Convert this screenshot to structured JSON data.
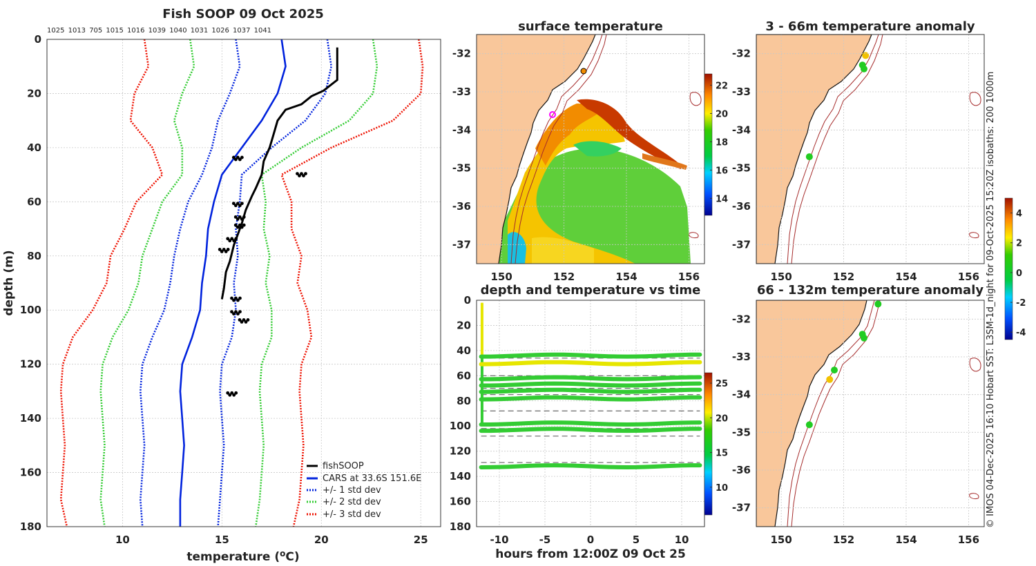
{
  "figure": {
    "copyright": "© IMOS 04-Dec-2025 16:10 Hobart SST: L3SM-1d_night for 09-Oct-2025 15:20Z isobaths: 200  1000m"
  },
  "colors": {
    "land": "#f9c79b",
    "coast": "#111111",
    "isobath": "#a52a2a",
    "fishsoop": "#000000",
    "cars": "#0022dd",
    "std1": "#0022dd",
    "std2": "#33cc33",
    "std3": "#ee1100",
    "dashed": "#666666"
  },
  "chart_data": [
    {
      "id": "profile",
      "type": "line",
      "title": "Fish SOOP 09 Oct 2025",
      "xlabel": "temperature (°C)",
      "ylabel": "depth (m)",
      "xlim": [
        6.2,
        26
      ],
      "ylim": [
        0,
        180
      ],
      "y_reversed": true,
      "xticks": [
        10,
        15,
        20,
        25
      ],
      "yticks": [
        0,
        20,
        40,
        60,
        80,
        100,
        120,
        140,
        160,
        180
      ],
      "top_annotations": [
        "1025",
        "1013",
        "705",
        "1015",
        "1016",
        "1039",
        "1040",
        "1031",
        "1026",
        "1037",
        "1041"
      ],
      "legend_position": "bottom-right",
      "series": [
        {
          "name": "fishSOOP",
          "style": "solid",
          "color": "#000000",
          "points": [
            [
              20.8,
              3
            ],
            [
              20.8,
              15
            ],
            [
              20.1,
              19
            ],
            [
              19.5,
              21
            ],
            [
              19.0,
              24
            ],
            [
              18.2,
              26
            ],
            [
              17.8,
              30
            ],
            [
              17.6,
              35
            ],
            [
              17.4,
              40
            ],
            [
              17.1,
              45
            ],
            [
              17.0,
              50
            ],
            [
              16.7,
              55
            ],
            [
              16.5,
              58
            ],
            [
              16.2,
              63
            ],
            [
              16.0,
              68
            ],
            [
              15.8,
              72
            ],
            [
              15.6,
              76
            ],
            [
              15.4,
              82
            ],
            [
              15.2,
              86
            ],
            [
              15.1,
              92
            ],
            [
              15.0,
              96
            ]
          ]
        },
        {
          "name": "CARS at 33.6S 151.6E",
          "style": "solid",
          "color": "#0022dd",
          "points": [
            [
              18.0,
              0
            ],
            [
              18.2,
              10
            ],
            [
              17.8,
              20
            ],
            [
              17.0,
              30
            ],
            [
              16.0,
              40
            ],
            [
              15.0,
              50
            ],
            [
              14.6,
              60
            ],
            [
              14.3,
              70
            ],
            [
              14.2,
              80
            ],
            [
              14.0,
              90
            ],
            [
              13.9,
              100
            ],
            [
              13.5,
              110
            ],
            [
              13.0,
              120
            ],
            [
              12.9,
              130
            ],
            [
              13.0,
              140
            ],
            [
              13.1,
              150
            ],
            [
              13.0,
              160
            ],
            [
              12.9,
              170
            ],
            [
              12.9,
              180
            ]
          ]
        },
        {
          "name": "+/- 1 std dev",
          "style": "dotted",
          "color": "#0022dd",
          "points": [
            [
              15.7,
              0
            ],
            [
              15.9,
              10
            ],
            [
              15.4,
              20
            ],
            [
              14.8,
              30
            ],
            [
              14.5,
              40
            ],
            [
              14.0,
              50
            ],
            [
              13.3,
              60
            ],
            [
              12.9,
              70
            ],
            [
              12.6,
              80
            ],
            [
              12.4,
              90
            ],
            [
              12.1,
              100
            ],
            [
              11.5,
              110
            ],
            [
              11.0,
              120
            ],
            [
              10.9,
              130
            ],
            [
              11.0,
              140
            ],
            [
              11.1,
              150
            ],
            [
              11.0,
              160
            ],
            [
              10.9,
              170
            ],
            [
              11.0,
              180
            ]
          ]
        }
      ],
      "marker_clusters": [
        [
          15.8,
          44
        ],
        [
          19.0,
          50
        ],
        [
          15.8,
          61
        ],
        [
          15.9,
          66
        ],
        [
          15.9,
          69
        ],
        [
          15.5,
          74
        ],
        [
          15.1,
          78
        ],
        [
          15.7,
          96
        ],
        [
          15.7,
          101
        ],
        [
          16.1,
          104
        ],
        [
          15.5,
          131
        ]
      ]
    },
    {
      "id": "sst_map",
      "type": "heatmap",
      "title": "surface temperature",
      "xlim": [
        149.2,
        156.5
      ],
      "ylim": [
        -37.5,
        -31.5
      ],
      "xticks": [
        150,
        152,
        154,
        156
      ],
      "yticks": [
        -32,
        -33,
        -34,
        -35,
        -36,
        -37
      ],
      "colorbar": {
        "ticks": [
          14,
          16,
          18,
          20,
          22
        ],
        "range": [
          12.8,
          22.8
        ]
      }
    },
    {
      "id": "time_depth",
      "type": "scatter",
      "title": "depth and temperature vs time",
      "xlabel": "hours from 12:00Z 09 Oct 25",
      "xlim": [
        -12.5,
        12.5
      ],
      "ylim": [
        0,
        180
      ],
      "y_reversed": true,
      "xticks": [
        -10,
        -5,
        0,
        5,
        10
      ],
      "yticks": [
        0,
        20,
        40,
        60,
        80,
        100,
        120,
        140,
        160,
        180
      ],
      "dashed_levels": [
        44,
        46,
        60,
        62,
        70,
        75,
        88,
        102,
        108,
        129
      ],
      "bands": [
        44,
        50,
        62,
        67,
        72,
        78,
        98,
        103,
        132
      ],
      "colorbar": {
        "ticks": [
          10,
          15,
          20,
          25
        ],
        "range": [
          6,
          26.5
        ]
      }
    },
    {
      "id": "anom_shallow",
      "type": "scatter",
      "title": "3 - 66m temperature anomaly",
      "xlim": [
        149.2,
        156.5
      ],
      "ylim": [
        -37.5,
        -31.5
      ],
      "xticks": [
        150,
        152,
        154,
        156
      ],
      "yticks": [
        -32,
        -33,
        -34,
        -35,
        -36,
        -37
      ],
      "points": [
        {
          "lon": 152.7,
          "lat": -32.05,
          "color": "#f2c200"
        },
        {
          "lon": 152.6,
          "lat": -32.3,
          "color": "#22cc22"
        },
        {
          "lon": 152.65,
          "lat": -32.4,
          "color": "#22cc22"
        },
        {
          "lon": 150.9,
          "lat": -34.7,
          "color": "#22cc22"
        }
      ]
    },
    {
      "id": "anom_deep",
      "type": "scatter",
      "title": "66 - 132m temperature anomaly",
      "xlim": [
        149.2,
        156.5
      ],
      "ylim": [
        -37.5,
        -31.5
      ],
      "xticks": [
        150,
        152,
        154,
        156
      ],
      "yticks": [
        -32,
        -33,
        -34,
        -35,
        -36,
        -37
      ],
      "points": [
        {
          "lon": 153.1,
          "lat": -31.6,
          "color": "#22cc22"
        },
        {
          "lon": 152.6,
          "lat": -32.4,
          "color": "#22cc22"
        },
        {
          "lon": 152.65,
          "lat": -32.5,
          "color": "#22cc22"
        },
        {
          "lon": 151.7,
          "lat": -33.35,
          "color": "#22cc22"
        },
        {
          "lon": 151.55,
          "lat": -33.6,
          "color": "#f2c200"
        },
        {
          "lon": 150.9,
          "lat": -34.8,
          "color": "#22cc22"
        }
      ],
      "colorbar": {
        "ticks": [
          -4,
          -2,
          0,
          2,
          4
        ],
        "range": [
          -4.5,
          5
        ]
      }
    }
  ]
}
